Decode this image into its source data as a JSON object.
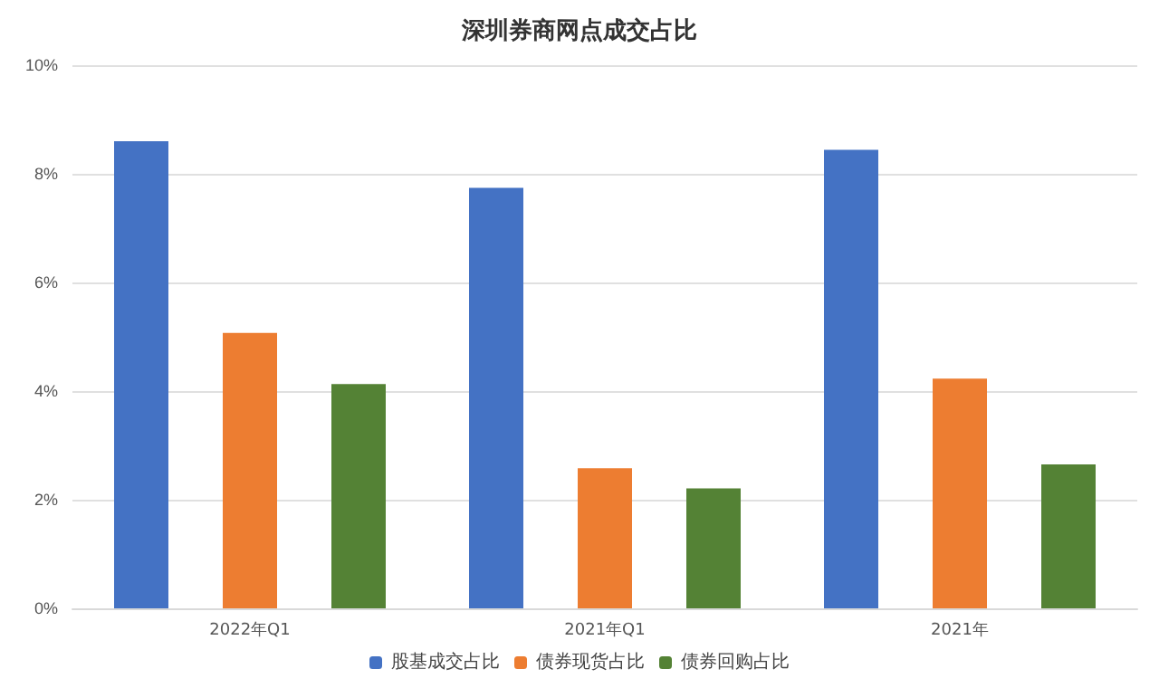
{
  "chart_data": {
    "type": "bar",
    "title": "深圳券商网点成交占比",
    "categories": [
      "2022年Q1",
      "2021年Q1",
      "2021年"
    ],
    "series": [
      {
        "name": "股基成交占比",
        "color": "#4472c4",
        "values": [
          8.6,
          7.74,
          8.44
        ]
      },
      {
        "name": "债券现货占比",
        "color": "#ed7d31",
        "values": [
          5.07,
          2.58,
          4.23
        ]
      },
      {
        "name": "债券回购占比",
        "color": "#548235",
        "values": [
          4.13,
          2.21,
          2.65
        ]
      }
    ],
    "ylim": [
      0,
      10
    ],
    "yticks": [
      {
        "value": 0,
        "label": "0%"
      },
      {
        "value": 2,
        "label": "2%"
      },
      {
        "value": 4,
        "label": "4%"
      },
      {
        "value": 6,
        "label": "6%"
      },
      {
        "value": 8,
        "label": "8%"
      },
      {
        "value": 10,
        "label": "10%"
      }
    ],
    "grid": "y",
    "legend": "bottom"
  }
}
